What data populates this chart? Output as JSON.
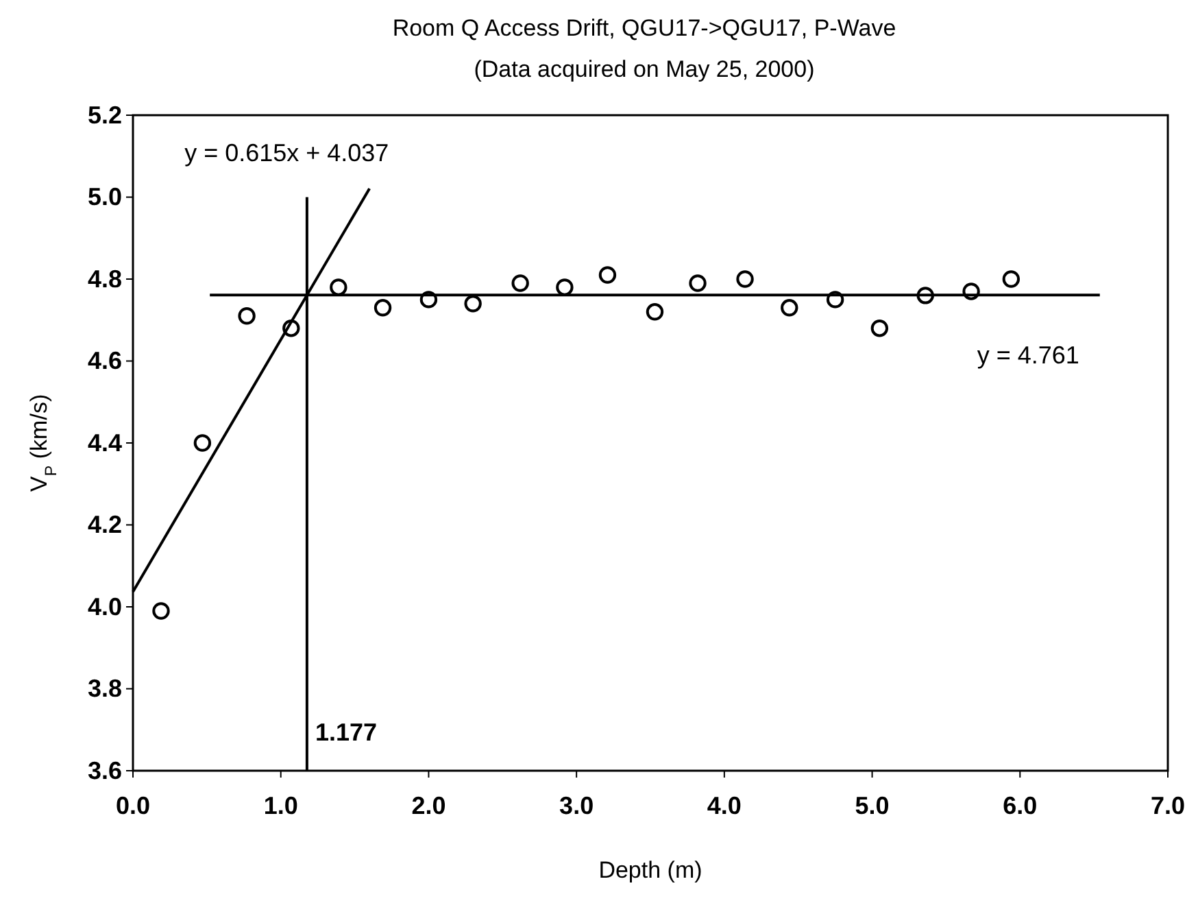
{
  "chart_data": {
    "type": "scatter",
    "title": "Room Q Access Drift, QGU17->QGU17, P-Wave",
    "subtitle": "(Data acquired on May 25, 2000)",
    "xlabel": "Depth (m)",
    "ylabel": "V$_{P}$ (km/s)",
    "xlim": [
      0,
      7
    ],
    "ylim": [
      3.6,
      5.2
    ],
    "xticks": [
      {
        "value": 0,
        "label": "0.0"
      },
      {
        "value": 1,
        "label": "1.0"
      },
      {
        "value": 2,
        "label": "2.0"
      },
      {
        "value": 3,
        "label": "3.0"
      },
      {
        "value": 4,
        "label": "4.0"
      },
      {
        "value": 5,
        "label": "5.0"
      },
      {
        "value": 6,
        "label": "6.0"
      },
      {
        "value": 7,
        "label": "7.0"
      }
    ],
    "yticks": [
      {
        "value": 3.6,
        "label": "3.6"
      },
      {
        "value": 3.8,
        "label": "3.8"
      },
      {
        "value": 4.0,
        "label": "4.0"
      },
      {
        "value": 4.2,
        "label": "4.2"
      },
      {
        "value": 4.4,
        "label": "4.4"
      },
      {
        "value": 4.6,
        "label": "4.6"
      },
      {
        "value": 4.8,
        "label": "4.8"
      },
      {
        "value": 5.0,
        "label": "5.0"
      },
      {
        "value": 5.2,
        "label": "5.2"
      }
    ],
    "grid": false,
    "series": [
      {
        "marker": "circle",
        "color": "#000000",
        "x": [
          0.19,
          0.47,
          0.77,
          1.07,
          1.39
        ],
        "values": [
          3.99,
          4.4,
          4.71,
          4.68,
          4.78
        ]
      },
      {
        "marker": "circle",
        "color": "#000000",
        "x": [
          1.69,
          2.0,
          2.3,
          2.62,
          2.92,
          3.21,
          3.53,
          3.82,
          4.14,
          4.44,
          4.75,
          5.05,
          5.36,
          5.67,
          5.94
        ],
        "values": [
          4.73,
          4.75,
          4.74,
          4.79,
          4.78,
          4.81,
          4.72,
          4.79,
          4.8,
          4.73,
          4.75,
          4.68,
          4.76,
          4.77,
          4.8
        ]
      },
      {
        "type": "line",
        "marker": "none",
        "color": "#000000",
        "x": [
          0,
          1.6
        ],
        "values": [
          4.037,
          5.021
        ]
      },
      {
        "type": "line",
        "marker": "none",
        "color": "#000000",
        "x": [
          0.52,
          6.54
        ],
        "values": [
          4.761,
          4.761
        ]
      },
      {
        "type": "line",
        "marker": "none",
        "color": "#000000",
        "x": [
          1.177,
          1.177
        ],
        "values": [
          3.6,
          5.0
        ]
      }
    ],
    "annotations": [
      {
        "text": "y = 0.615x + 4.037",
        "x": 1.6,
        "y": 5.021
      },
      {
        "text": "y = 4.761",
        "x": 6.54,
        "y": 4.761
      },
      {
        "text": "1.177",
        "x": 1.177,
        "y": 3.6
      }
    ]
  }
}
